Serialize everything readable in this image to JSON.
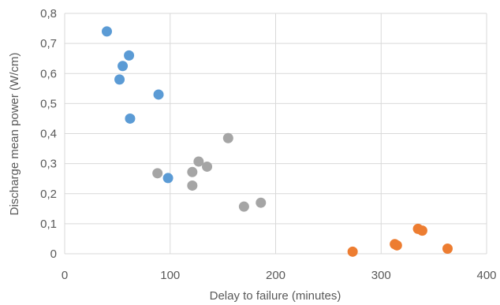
{
  "chart_data": {
    "type": "scatter",
    "title": "",
    "xlabel": "Delay to failure (minutes)",
    "ylabel": "Discharge mean power (W/cm)",
    "xlim": [
      0,
      400
    ],
    "ylim": [
      0,
      0.8
    ],
    "x_ticks": [
      "0",
      "100",
      "200",
      "300",
      "400"
    ],
    "y_ticks": [
      "0",
      "0,1",
      "0,2",
      "0,3",
      "0,4",
      "0,5",
      "0,6",
      "0,7",
      "0,8"
    ],
    "grid": true,
    "legend": "none",
    "series": [
      {
        "color": "#5B9BD5",
        "points": [
          {
            "x": 40,
            "y": 0.74
          },
          {
            "x": 61,
            "y": 0.66
          },
          {
            "x": 55,
            "y": 0.625
          },
          {
            "x": 52,
            "y": 0.58
          },
          {
            "x": 89,
            "y": 0.53
          },
          {
            "x": 62,
            "y": 0.45
          },
          {
            "x": 98,
            "y": 0.252
          }
        ]
      },
      {
        "color": "#A5A5A5",
        "points": [
          {
            "x": 155,
            "y": 0.385
          },
          {
            "x": 127,
            "y": 0.307
          },
          {
            "x": 135,
            "y": 0.29
          },
          {
            "x": 88,
            "y": 0.268
          },
          {
            "x": 121,
            "y": 0.272
          },
          {
            "x": 121,
            "y": 0.227
          },
          {
            "x": 186,
            "y": 0.17
          },
          {
            "x": 170,
            "y": 0.157
          }
        ]
      },
      {
        "color": "#ED7D31",
        "points": [
          {
            "x": 273,
            "y": 0.007
          },
          {
            "x": 313,
            "y": 0.032
          },
          {
            "x": 315,
            "y": 0.028
          },
          {
            "x": 335,
            "y": 0.083
          },
          {
            "x": 339,
            "y": 0.077
          },
          {
            "x": 363,
            "y": 0.017
          }
        ]
      }
    ]
  }
}
